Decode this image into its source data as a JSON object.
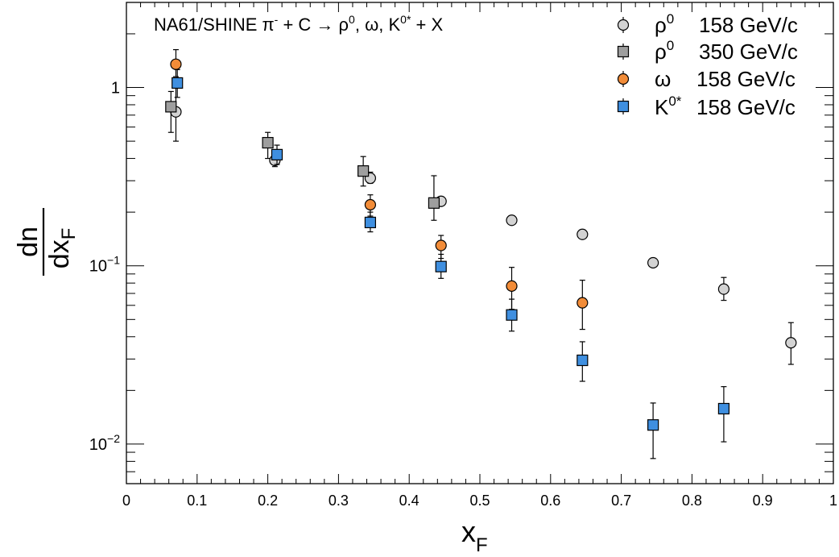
{
  "chart_data": {
    "type": "scatter",
    "title": "NA61/SHINE π⁻ + C → ρ⁰, ω, K⁰* + X",
    "title_parts": {
      "prefix": "NA61/SHINE π",
      "pi_sup": "-",
      "mid": " + C → ρ",
      "rho_sup": "0",
      "mid2": ", ω, K",
      "k_sup": "0*",
      "suffix": " + X"
    },
    "xlabel": {
      "main": "x",
      "sub": "F"
    },
    "ylabel": {
      "numerator": "dn",
      "denominator_main": "dx",
      "denominator_sub": "F"
    },
    "xlim": [
      0,
      1
    ],
    "ylim": [
      0.006,
      3.0
    ],
    "yscale": "log",
    "grid": false,
    "legend_position": "top-right",
    "x_tick_labels": [
      "0",
      "0.1",
      "0.2",
      "0.3",
      "0.4",
      "0.5",
      "0.6",
      "0.7",
      "0.8",
      "0.9",
      "1"
    ],
    "y_tick_labels": [
      {
        "value": 1,
        "base": "1",
        "exp": ""
      },
      {
        "value": 0.1,
        "base": "10",
        "exp": "−1"
      },
      {
        "value": 0.01,
        "base": "10",
        "exp": "−2"
      }
    ],
    "series": [
      {
        "name": "ρ0 158 GeV/c",
        "legend": {
          "main": "ρ",
          "sup": "0",
          "energy": "158 GeV/c"
        },
        "marker": "circle",
        "color": "#d3d3d3",
        "x": [
          0.07,
          0.21,
          0.345,
          0.445,
          0.545,
          0.645,
          0.745,
          0.845,
          0.94
        ],
        "y": [
          0.73,
          0.39,
          0.31,
          0.23,
          0.18,
          0.15,
          0.104,
          0.074,
          0.037
        ],
        "yerr_low": [
          0.23,
          0.03,
          0.02,
          0.01,
          0.005,
          0.004,
          0.003,
          0.01,
          0.009
        ],
        "yerr_high": [
          0.37,
          0.04,
          0.025,
          0.01,
          0.005,
          0.004,
          0.003,
          0.012,
          0.011
        ]
      },
      {
        "name": "ρ0 350 GeV/c",
        "legend": {
          "main": "ρ",
          "sup": "0",
          "energy": "350 GeV/c"
        },
        "marker": "square",
        "color": "#9e9e9e",
        "x": [
          0.063,
          0.2,
          0.335,
          0.435
        ],
        "y": [
          0.78,
          0.49,
          0.34,
          0.225
        ],
        "yerr_low": [
          0.22,
          0.09,
          0.06,
          0.045
        ],
        "yerr_high": [
          0.17,
          0.07,
          0.07,
          0.095
        ]
      },
      {
        "name": "ω 158 GeV/c",
        "legend": {
          "main": "ω",
          "sup": "",
          "energy": "158 GeV/c"
        },
        "marker": "circle",
        "color": "#f28c38",
        "x": [
          0.07,
          0.345,
          0.445,
          0.545,
          0.645
        ],
        "y": [
          1.35,
          0.22,
          0.13,
          0.077,
          0.062
        ],
        "yerr_low": [
          0.2,
          0.03,
          0.02,
          0.02,
          0.018
        ],
        "yerr_high": [
          0.28,
          0.03,
          0.018,
          0.021,
          0.021
        ]
      },
      {
        "name": "K0* 158 GeV/c",
        "legend": {
          "main": "K",
          "sup": "0*",
          "energy": "158 GeV/c"
        },
        "marker": "square",
        "color": "#3f8fe0",
        "x": [
          0.072,
          0.213,
          0.345,
          0.445,
          0.545,
          0.645,
          0.745,
          0.845
        ],
        "y": [
          1.06,
          0.42,
          0.175,
          0.099,
          0.053,
          0.0295,
          0.0128,
          0.0158
        ],
        "yerr_low": [
          0.18,
          0.05,
          0.02,
          0.014,
          0.01,
          0.007,
          0.0045,
          0.0055
        ],
        "yerr_high": [
          0.2,
          0.055,
          0.025,
          0.017,
          0.012,
          0.008,
          0.0042,
          0.0052
        ]
      }
    ]
  }
}
